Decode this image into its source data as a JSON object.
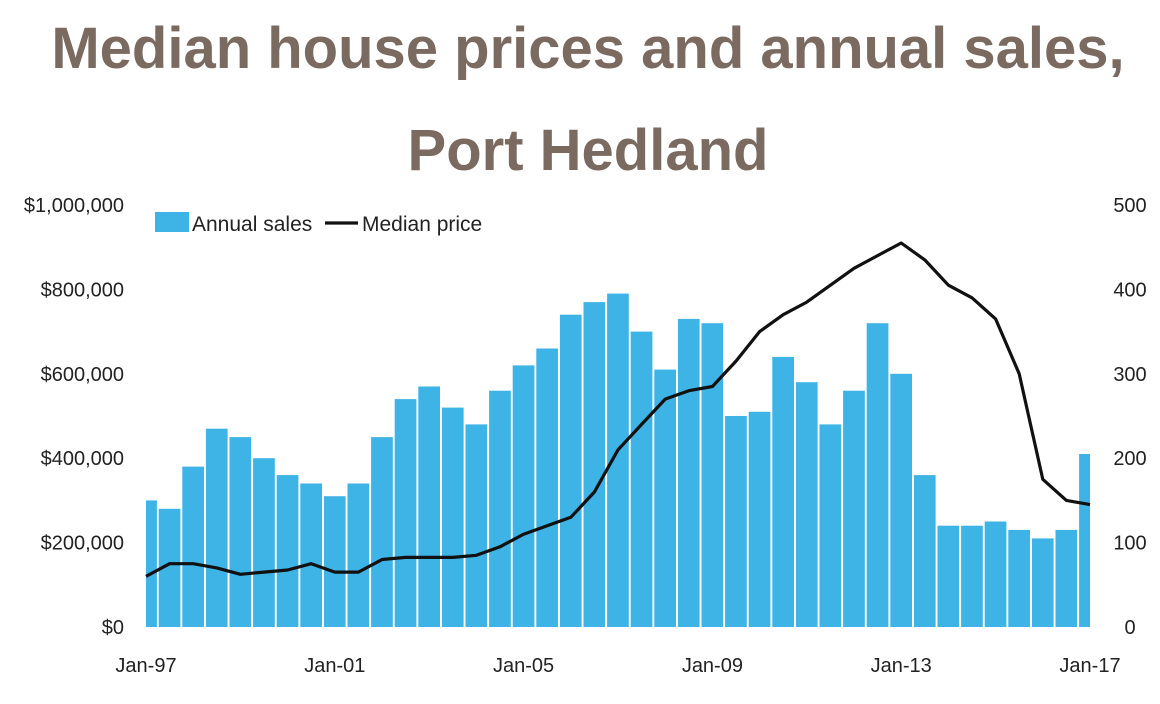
{
  "chart_data": {
    "type": "bar",
    "title_line1": "Median house prices and annual sales,",
    "title_line2": "Port Hedland",
    "x_ticks": [
      "Jan-97",
      "Jan-01",
      "Jan-05",
      "Jan-09",
      "Jan-13",
      "Jan-17"
    ],
    "x_range": [
      1997.0,
      2017.0
    ],
    "y_left": {
      "range": [
        0,
        1000000
      ],
      "ticks": [
        "$0",
        "$200,000",
        "$400,000",
        "$600,000",
        "$800,000",
        "$1,000,000"
      ]
    },
    "y_right": {
      "range": [
        0,
        500
      ],
      "ticks": [
        "0",
        "100",
        "200",
        "300",
        "400",
        "500"
      ]
    },
    "legend": {
      "position": "top-left",
      "items": [
        "Annual sales",
        "Median price"
      ]
    },
    "grid": false,
    "colors": {
      "bars": "#3eb3e6",
      "line": "#111111",
      "title": "#7a6a60"
    },
    "series": [
      {
        "name": "Annual sales",
        "type": "bar",
        "axis": "right",
        "x": [
          1997.0,
          1997.5,
          1998.0,
          1998.5,
          1999.0,
          1999.5,
          2000.0,
          2000.5,
          2001.0,
          2001.5,
          2002.0,
          2002.5,
          2003.0,
          2003.5,
          2004.0,
          2004.5,
          2005.0,
          2005.5,
          2006.0,
          2006.5,
          2007.0,
          2007.5,
          2008.0,
          2008.5,
          2009.0,
          2009.5,
          2010.0,
          2010.5,
          2011.0,
          2011.5,
          2012.0,
          2012.5,
          2013.0,
          2013.5,
          2014.0,
          2014.5,
          2015.0,
          2015.5,
          2016.0,
          2016.5,
          2017.0
        ],
        "values": [
          150,
          140,
          190,
          235,
          225,
          200,
          180,
          170,
          155,
          170,
          225,
          270,
          285,
          260,
          240,
          280,
          310,
          330,
          370,
          385,
          395,
          350,
          305,
          365,
          360,
          250,
          255,
          320,
          290,
          240,
          280,
          360,
          300,
          180,
          120,
          120,
          125,
          115,
          105,
          115,
          205
        ]
      },
      {
        "name": "Median price",
        "type": "line",
        "axis": "left",
        "x": [
          1997.0,
          1997.5,
          1998.0,
          1998.5,
          1999.0,
          1999.5,
          2000.0,
          2000.5,
          2001.0,
          2001.5,
          2002.0,
          2002.5,
          2003.0,
          2003.5,
          2004.0,
          2004.5,
          2005.0,
          2005.5,
          2006.0,
          2006.5,
          2007.0,
          2007.5,
          2008.0,
          2008.5,
          2009.0,
          2009.5,
          2010.0,
          2010.5,
          2011.0,
          2011.5,
          2012.0,
          2012.5,
          2013.0,
          2013.5,
          2014.0,
          2014.5,
          2015.0,
          2015.5,
          2016.0,
          2016.5,
          2017.0
        ],
        "values": [
          120000,
          150000,
          150000,
          140000,
          125000,
          130000,
          135000,
          150000,
          130000,
          130000,
          160000,
          165000,
          165000,
          165000,
          170000,
          190000,
          220000,
          240000,
          260000,
          320000,
          420000,
          480000,
          540000,
          560000,
          570000,
          630000,
          700000,
          740000,
          770000,
          810000,
          850000,
          880000,
          910000,
          870000,
          810000,
          780000,
          730000,
          600000,
          350000,
          300000,
          290000
        ]
      }
    ]
  }
}
